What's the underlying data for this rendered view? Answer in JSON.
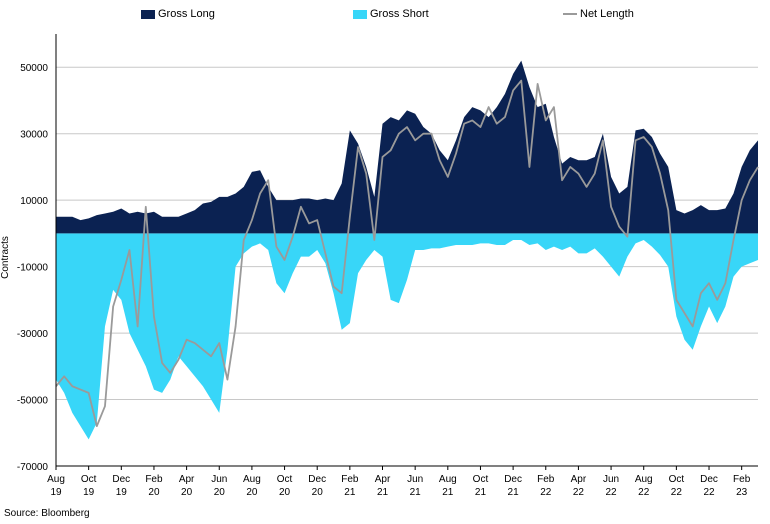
{
  "chart_data": {
    "type": "area",
    "ylabel": "Contracts",
    "source": "Source: Bloomberg",
    "ylim": [
      -70000,
      60000
    ],
    "y_ticks": [
      50000,
      30000,
      10000,
      -10000,
      -30000,
      -50000,
      -70000
    ],
    "grid": true,
    "legend_placement": "top",
    "colors": {
      "gross_long": "#0b2252",
      "gross_short": "#38d6f8",
      "net_length": "#9a9a9a",
      "grid": "#c8c8c8"
    },
    "x_ticks": [
      {
        "m": "Aug",
        "y": "19",
        "t": 0
      },
      {
        "m": "Oct",
        "y": "19",
        "t": 2
      },
      {
        "m": "Dec",
        "y": "19",
        "t": 4
      },
      {
        "m": "Feb",
        "y": "20",
        "t": 6
      },
      {
        "m": "Apr",
        "y": "20",
        "t": 8
      },
      {
        "m": "Jun",
        "y": "20",
        "t": 10
      },
      {
        "m": "Aug",
        "y": "20",
        "t": 12
      },
      {
        "m": "Oct",
        "y": "20",
        "t": 14
      },
      {
        "m": "Dec",
        "y": "20",
        "t": 16
      },
      {
        "m": "Feb",
        "y": "21",
        "t": 18
      },
      {
        "m": "Apr",
        "y": "21",
        "t": 20
      },
      {
        "m": "Jun",
        "y": "21",
        "t": 22
      },
      {
        "m": "Aug",
        "y": "21",
        "t": 24
      },
      {
        "m": "Oct",
        "y": "21",
        "t": 26
      },
      {
        "m": "Dec",
        "y": "21",
        "t": 28
      },
      {
        "m": "Feb",
        "y": "22",
        "t": 30
      },
      {
        "m": "Apr",
        "y": "22",
        "t": 32
      },
      {
        "m": "Jun",
        "y": "22",
        "t": 34
      },
      {
        "m": "Aug",
        "y": "22",
        "t": 36
      },
      {
        "m": "Oct",
        "y": "22",
        "t": 38
      },
      {
        "m": "Dec",
        "y": "22",
        "t": 40
      },
      {
        "m": "Feb",
        "y": "23",
        "t": 42
      }
    ],
    "series": [
      {
        "name": "Gross Long",
        "points": [
          [
            0,
            5000
          ],
          [
            0.5,
            5000
          ],
          [
            1,
            5000
          ],
          [
            1.5,
            4000
          ],
          [
            2,
            4500
          ],
          [
            2.5,
            5500
          ],
          [
            3,
            6000
          ],
          [
            3.5,
            6500
          ],
          [
            4,
            7500
          ],
          [
            4.5,
            6000
          ],
          [
            5,
            6500
          ],
          [
            5.5,
            6000
          ],
          [
            6,
            6500
          ],
          [
            6.5,
            5000
          ],
          [
            7,
            5000
          ],
          [
            7.5,
            5000
          ],
          [
            8,
            6000
          ],
          [
            8.5,
            7000
          ],
          [
            9,
            9000
          ],
          [
            9.5,
            9500
          ],
          [
            10,
            11000
          ],
          [
            10.5,
            11000
          ],
          [
            11,
            12000
          ],
          [
            11.5,
            14000
          ],
          [
            12,
            18500
          ],
          [
            12.5,
            19000
          ],
          [
            13,
            14000
          ],
          [
            13.5,
            10000
          ],
          [
            14,
            10000
          ],
          [
            14.5,
            10000
          ],
          [
            15,
            10500
          ],
          [
            15.5,
            10500
          ],
          [
            16,
            10000
          ],
          [
            16.5,
            10500
          ],
          [
            17,
            10000
          ],
          [
            17.5,
            15000
          ],
          [
            18,
            31000
          ],
          [
            18.5,
            27000
          ],
          [
            19,
            20000
          ],
          [
            19.5,
            11000
          ],
          [
            20,
            33000
          ],
          [
            20.5,
            35000
          ],
          [
            21,
            34000
          ],
          [
            21.5,
            37000
          ],
          [
            22,
            36000
          ],
          [
            22.5,
            32000
          ],
          [
            23,
            30000
          ],
          [
            23.5,
            25000
          ],
          [
            24,
            22000
          ],
          [
            24.5,
            28000
          ],
          [
            25,
            35000
          ],
          [
            25.5,
            38000
          ],
          [
            26,
            37000
          ],
          [
            26.5,
            35000
          ],
          [
            27,
            38000
          ],
          [
            27.5,
            42000
          ],
          [
            28,
            48000
          ],
          [
            28.5,
            52000
          ],
          [
            29,
            44000
          ],
          [
            29.5,
            38000
          ],
          [
            30,
            39000
          ],
          [
            30.5,
            29000
          ],
          [
            31,
            21000
          ],
          [
            31.5,
            23000
          ],
          [
            32,
            22000
          ],
          [
            32.5,
            22000
          ],
          [
            33,
            23000
          ],
          [
            33.5,
            30000
          ],
          [
            34,
            17000
          ],
          [
            34.5,
            12000
          ],
          [
            35,
            14000
          ],
          [
            35.5,
            31000
          ],
          [
            36,
            31500
          ],
          [
            36.5,
            29000
          ],
          [
            37,
            24000
          ],
          [
            37.5,
            20000
          ],
          [
            38,
            7000
          ],
          [
            38.5,
            6000
          ],
          [
            39,
            7000
          ],
          [
            39.5,
            8500
          ],
          [
            40,
            7000
          ],
          [
            40.5,
            7000
          ],
          [
            41,
            7500
          ],
          [
            41.5,
            12000
          ],
          [
            42,
            20000
          ],
          [
            42.5,
            25000
          ],
          [
            43,
            28000
          ]
        ]
      },
      {
        "name": "Gross Short",
        "points": [
          [
            0,
            -44000
          ],
          [
            0.5,
            -48000
          ],
          [
            1,
            -54000
          ],
          [
            1.5,
            -58000
          ],
          [
            2,
            -62000
          ],
          [
            2.5,
            -57000
          ],
          [
            3,
            -28000
          ],
          [
            3.5,
            -17000
          ],
          [
            4,
            -20000
          ],
          [
            4.5,
            -30000
          ],
          [
            5,
            -35000
          ],
          [
            5.5,
            -40000
          ],
          [
            6,
            -47000
          ],
          [
            6.5,
            -48000
          ],
          [
            7,
            -44000
          ],
          [
            7.5,
            -37000
          ],
          [
            8,
            -40000
          ],
          [
            8.5,
            -43000
          ],
          [
            9,
            -46000
          ],
          [
            9.5,
            -50000
          ],
          [
            10,
            -54000
          ],
          [
            10.5,
            -35000
          ],
          [
            11,
            -10000
          ],
          [
            11.5,
            -6000
          ],
          [
            12,
            -4000
          ],
          [
            12.5,
            -3000
          ],
          [
            13,
            -5000
          ],
          [
            13.5,
            -15000
          ],
          [
            14,
            -18000
          ],
          [
            14.5,
            -12000
          ],
          [
            15,
            -7000
          ],
          [
            15.5,
            -7000
          ],
          [
            16,
            -5000
          ],
          [
            16.5,
            -9000
          ],
          [
            17,
            -18000
          ],
          [
            17.5,
            -29000
          ],
          [
            18,
            -27000
          ],
          [
            18.5,
            -12000
          ],
          [
            19,
            -8000
          ],
          [
            19.5,
            -5000
          ],
          [
            20,
            -7000
          ],
          [
            20.5,
            -20000
          ],
          [
            21,
            -21000
          ],
          [
            21.5,
            -14000
          ],
          [
            22,
            -5000
          ],
          [
            22.5,
            -5000
          ],
          [
            23,
            -4500
          ],
          [
            23.5,
            -4500
          ],
          [
            24,
            -4000
          ],
          [
            24.5,
            -3500
          ],
          [
            25,
            -3500
          ],
          [
            25.5,
            -3500
          ],
          [
            26,
            -3000
          ],
          [
            26.5,
            -3000
          ],
          [
            27,
            -3500
          ],
          [
            27.5,
            -3500
          ],
          [
            28,
            -2000
          ],
          [
            28.5,
            -2000
          ],
          [
            29,
            -3500
          ],
          [
            29.5,
            -3000
          ],
          [
            30,
            -5000
          ],
          [
            30.5,
            -4000
          ],
          [
            31,
            -5000
          ],
          [
            31.5,
            -4000
          ],
          [
            32,
            -6000
          ],
          [
            32.5,
            -6000
          ],
          [
            33,
            -4500
          ],
          [
            33.5,
            -7000
          ],
          [
            34,
            -10000
          ],
          [
            34.5,
            -13000
          ],
          [
            35,
            -7000
          ],
          [
            35.5,
            -3000
          ],
          [
            36,
            -2000
          ],
          [
            36.5,
            -4000
          ],
          [
            37,
            -6500
          ],
          [
            37.5,
            -10000
          ],
          [
            38,
            -25000
          ],
          [
            38.5,
            -32000
          ],
          [
            39,
            -35000
          ],
          [
            39.5,
            -28000
          ],
          [
            40,
            -22000
          ],
          [
            40.5,
            -27000
          ],
          [
            41,
            -22000
          ],
          [
            41.5,
            -13000
          ],
          [
            42,
            -10000
          ],
          [
            42.5,
            -9000
          ],
          [
            43,
            -8000
          ]
        ]
      },
      {
        "name": "Net Length",
        "points": [
          [
            0,
            -46000
          ],
          [
            0.5,
            -43000
          ],
          [
            1,
            -46000
          ],
          [
            1.5,
            -47000
          ],
          [
            2,
            -48000
          ],
          [
            2.5,
            -58000
          ],
          [
            3,
            -52000
          ],
          [
            3.5,
            -22000
          ],
          [
            4,
            -14000
          ],
          [
            4.5,
            -5000
          ],
          [
            5,
            -28000
          ],
          [
            5.5,
            8000
          ],
          [
            6,
            -25000
          ],
          [
            6.5,
            -39000
          ],
          [
            7,
            -42000
          ],
          [
            7.5,
            -38000
          ],
          [
            8,
            -32000
          ],
          [
            8.5,
            -33000
          ],
          [
            9,
            -35000
          ],
          [
            9.5,
            -37000
          ],
          [
            10,
            -33000
          ],
          [
            10.5,
            -44000
          ],
          [
            11,
            -28000
          ],
          [
            11.5,
            -2000
          ],
          [
            12,
            4000
          ],
          [
            12.5,
            12000
          ],
          [
            13,
            16000
          ],
          [
            13.5,
            -4000
          ],
          [
            14,
            -8000
          ],
          [
            14.5,
            -1000
          ],
          [
            15,
            8000
          ],
          [
            15.5,
            3000
          ],
          [
            16,
            4000
          ],
          [
            16.5,
            -6000
          ],
          [
            17,
            -16000
          ],
          [
            17.5,
            -18000
          ],
          [
            18,
            5000
          ],
          [
            18.5,
            26000
          ],
          [
            19,
            18000
          ],
          [
            19.5,
            -2000
          ],
          [
            20,
            23000
          ],
          [
            20.5,
            25000
          ],
          [
            21,
            30000
          ],
          [
            21.5,
            32000
          ],
          [
            22,
            28000
          ],
          [
            22.5,
            30000
          ],
          [
            23,
            30000
          ],
          [
            23.5,
            22000
          ],
          [
            24,
            17000
          ],
          [
            24.5,
            24000
          ],
          [
            25,
            33000
          ],
          [
            25.5,
            34000
          ],
          [
            26,
            32000
          ],
          [
            26.5,
            38000
          ],
          [
            27,
            33000
          ],
          [
            27.5,
            35000
          ],
          [
            28,
            43000
          ],
          [
            28.5,
            46000
          ],
          [
            29,
            20000
          ],
          [
            29.5,
            45000
          ],
          [
            30,
            34000
          ],
          [
            30.5,
            38000
          ],
          [
            31,
            16000
          ],
          [
            31.5,
            20000
          ],
          [
            32,
            18000
          ],
          [
            32.5,
            14000
          ],
          [
            33,
            18000
          ],
          [
            33.5,
            28000
          ],
          [
            34,
            8000
          ],
          [
            34.5,
            2000
          ],
          [
            35,
            -1000
          ],
          [
            35.5,
            28000
          ],
          [
            36,
            29000
          ],
          [
            36.5,
            26000
          ],
          [
            37,
            18000
          ],
          [
            37.5,
            7000
          ],
          [
            38,
            -20000
          ],
          [
            38.5,
            -24000
          ],
          [
            39,
            -28000
          ],
          [
            39.5,
            -18000
          ],
          [
            40,
            -15000
          ],
          [
            40.5,
            -20000
          ],
          [
            41,
            -15000
          ],
          [
            41.5,
            -2000
          ],
          [
            42,
            10000
          ],
          [
            42.5,
            16000
          ],
          [
            43,
            20000
          ]
        ]
      }
    ]
  }
}
